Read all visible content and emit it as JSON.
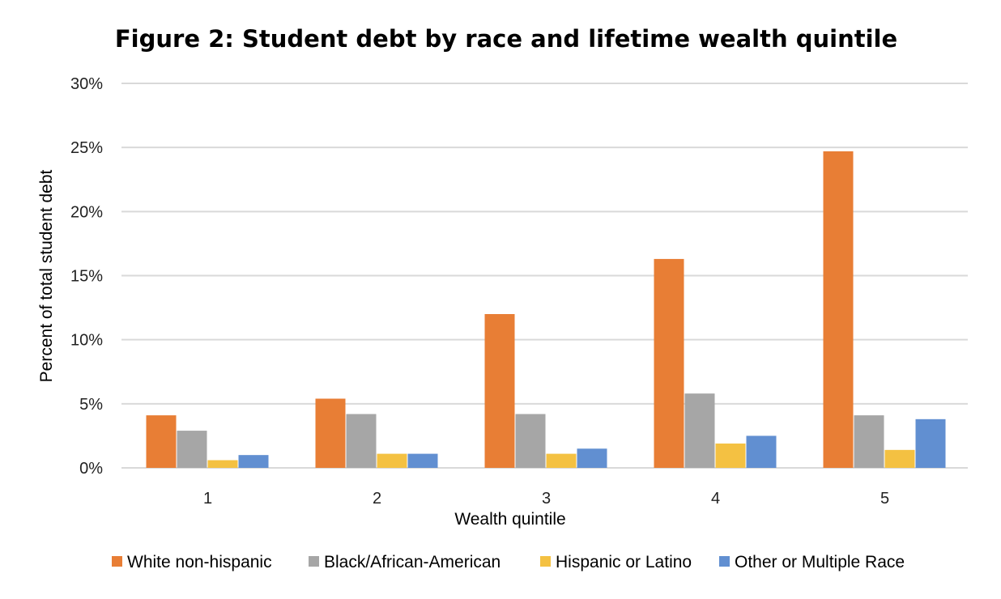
{
  "chart_data": {
    "type": "bar",
    "title": "Figure 2: Student debt by race and lifetime wealth quintile",
    "xlabel": "Wealth quintile",
    "ylabel": "Percent of total student debt",
    "categories": [
      "1",
      "2",
      "3",
      "4",
      "5"
    ],
    "ylim": [
      0,
      30
    ],
    "yticks": [
      0,
      5,
      10,
      15,
      20,
      25,
      30
    ],
    "ytick_labels": [
      "0%",
      "5%",
      "10%",
      "15%",
      "20%",
      "25%",
      "30%"
    ],
    "grid": true,
    "legend_position": "bottom",
    "series": [
      {
        "name": "White non-hispanic",
        "color": "#E87E35",
        "values": [
          4.1,
          5.4,
          12.0,
          16.3,
          24.7
        ]
      },
      {
        "name": "Black/African-American",
        "color": "#A6A6A6",
        "values": [
          2.9,
          4.2,
          4.2,
          5.8,
          4.1
        ]
      },
      {
        "name": "Hispanic or Latino",
        "color": "#F4C142",
        "values": [
          0.6,
          1.1,
          1.1,
          1.9,
          1.4
        ]
      },
      {
        "name": "Other or Multiple Race",
        "color": "#618FD1",
        "values": [
          1.0,
          1.1,
          1.5,
          2.5,
          3.8
        ]
      }
    ]
  }
}
